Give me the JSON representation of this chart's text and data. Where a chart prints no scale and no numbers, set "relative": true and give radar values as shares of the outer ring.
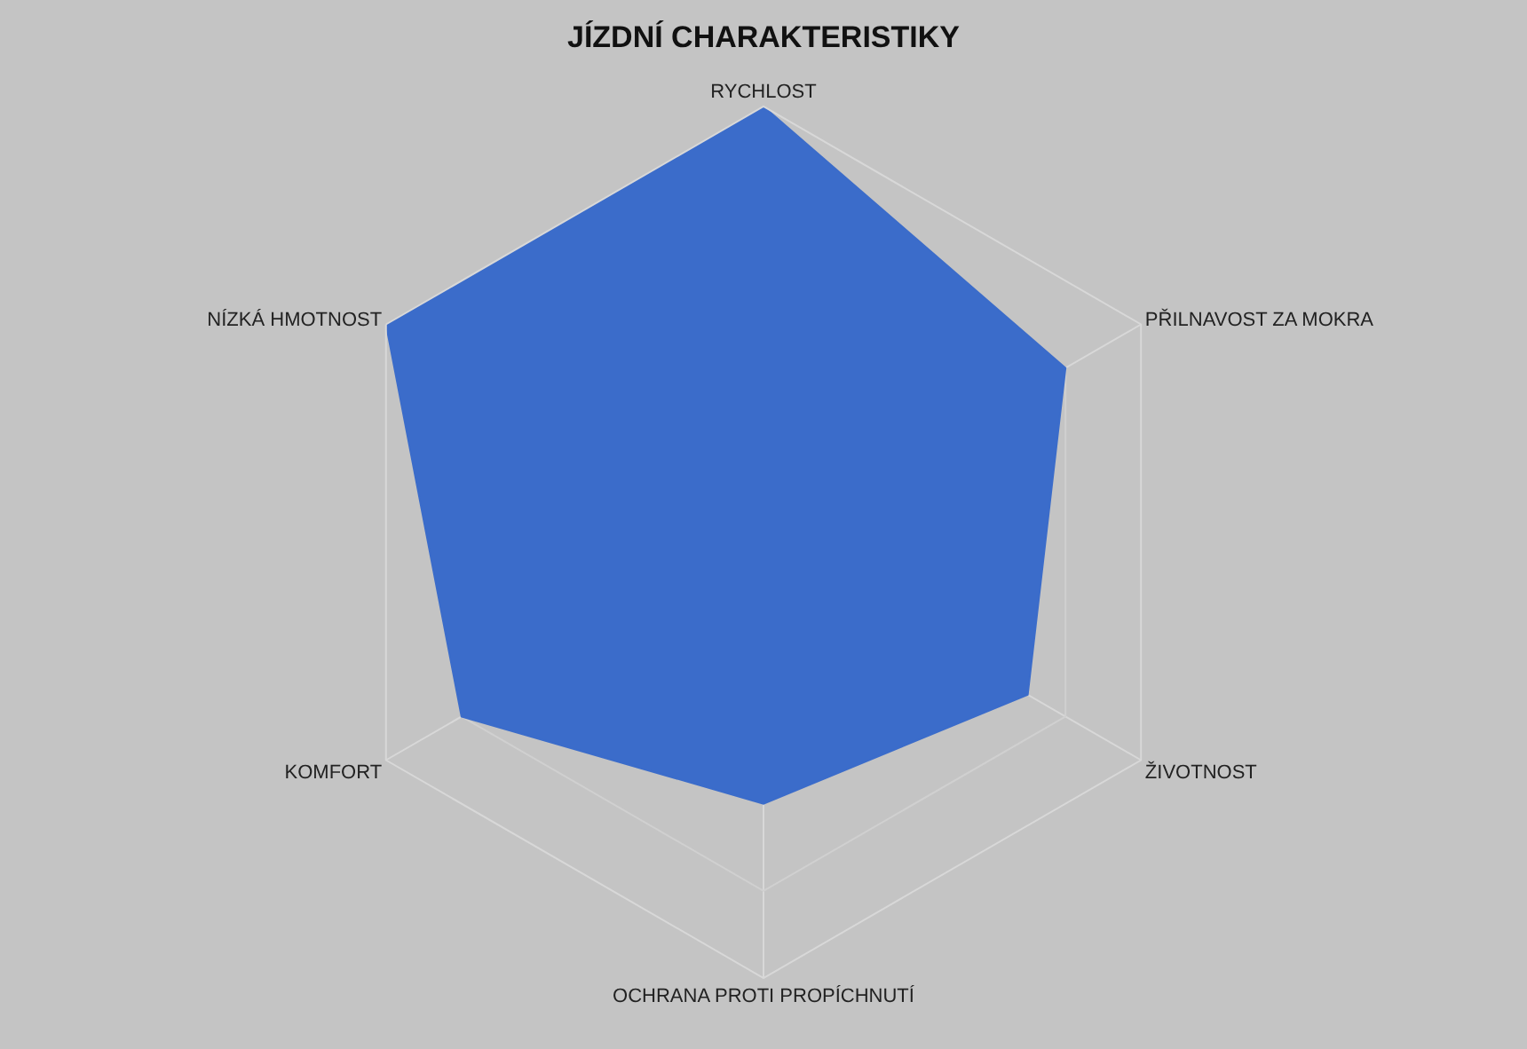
{
  "chart_data": {
    "type": "radar",
    "title": "JÍZDNÍ CHARAKTERISTIKY",
    "categories": [
      "RYCHLOST",
      "PŘILNAVOST ZA MOKRA",
      "ŽIVOTNOST",
      "OCHRANA PROTI PROPÍCHNUTÍ",
      "KOMFORT",
      "NÍZKÁ HMOTNOST"
    ],
    "relative": true,
    "grid": true,
    "series": [
      {
        "color": "#3b6cca",
        "values": [
          1,
          0.8,
          0.7,
          0.6,
          0.8,
          1
        ]
      }
    ]
  }
}
